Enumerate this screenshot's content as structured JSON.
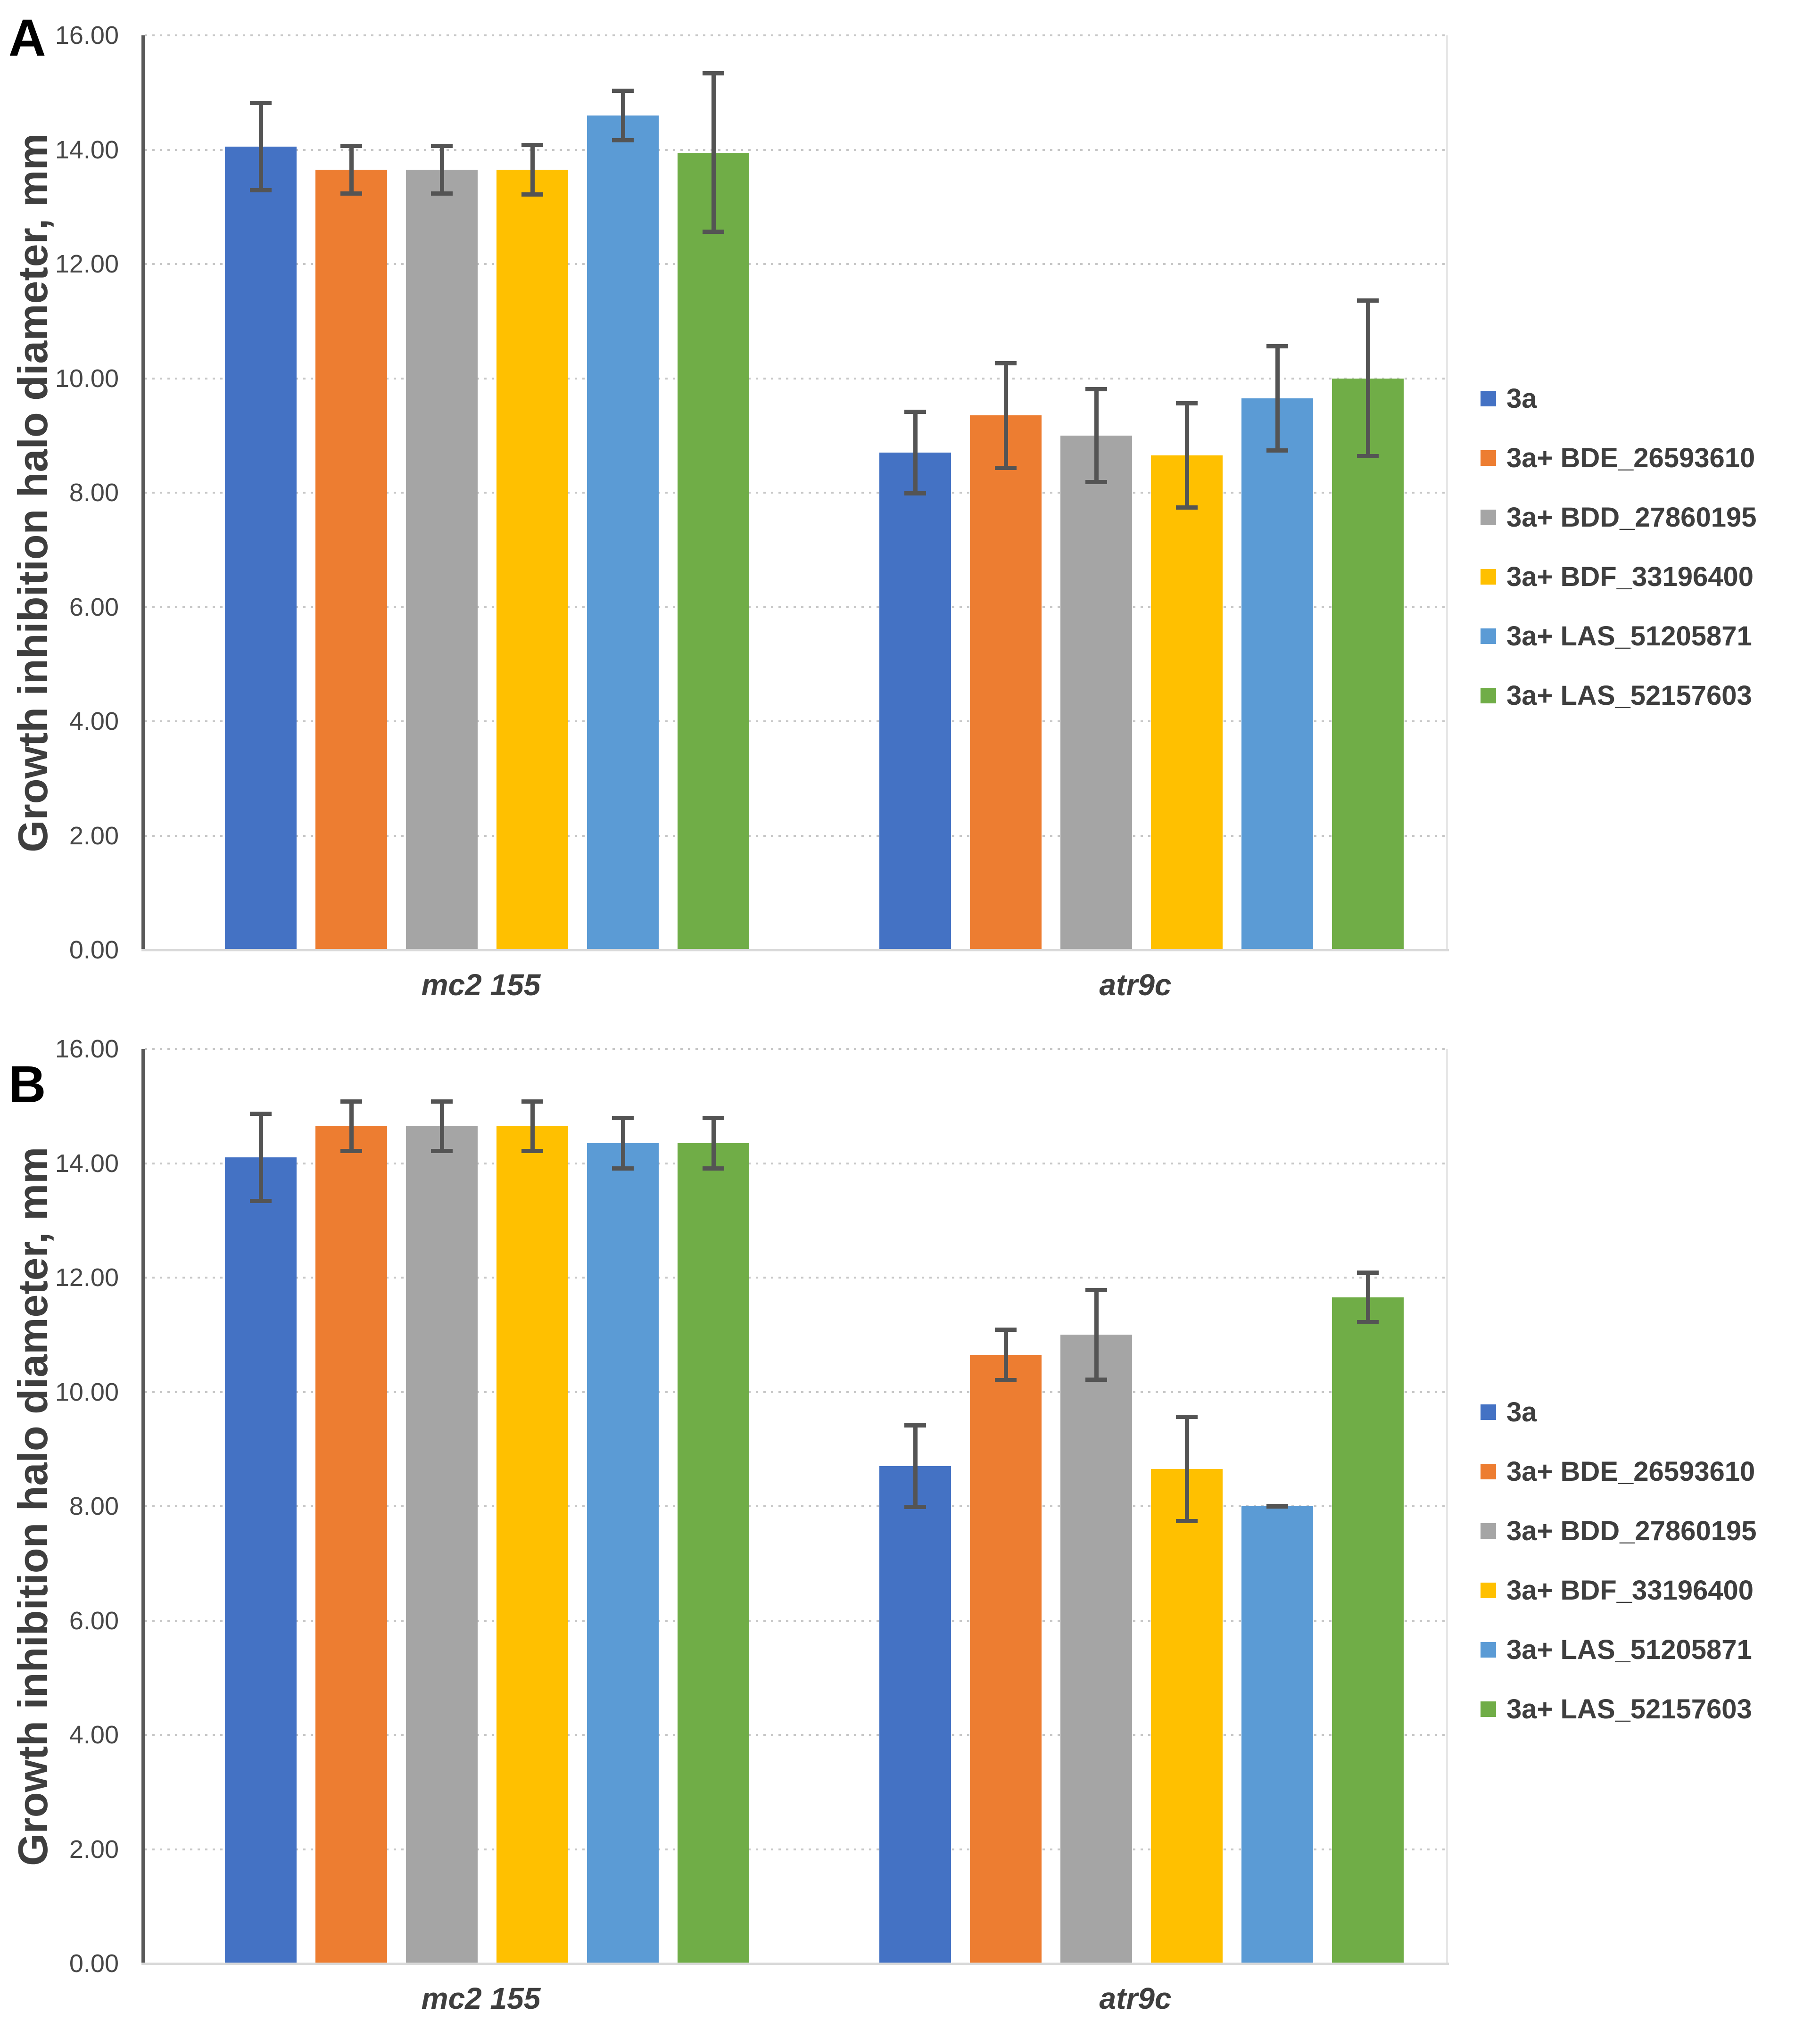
{
  "colors": {
    "series": [
      "#4472C4",
      "#ED7D31",
      "#A5A5A5",
      "#FFC000",
      "#5B9BD5",
      "#70AD47"
    ],
    "error_bar": "#545454",
    "gridline": "#C7C7C7",
    "axis_line_left": "#595959",
    "axis_line_bottom": "#D9D9D9",
    "text": "#3E3E3E"
  },
  "chart_data": [
    {
      "type": "bar",
      "panel_label": "A",
      "ylabel": "Growth inhibition halo diameter, mm",
      "ylim": [
        0,
        16
      ],
      "ytick_step": 2,
      "ytick_labels": [
        "16.00",
        "14.00",
        "12.00",
        "10.00",
        "8.00",
        "6.00",
        "4.00",
        "2.00",
        "0.00"
      ],
      "categories": [
        "mc2 155",
        "atr9c"
      ],
      "grid": true,
      "legend_position": "right",
      "series": [
        {
          "name": "3a",
          "color": "#4472C4",
          "values": [
            14.05,
            8.7
          ],
          "errors": [
            0.8,
            0.75
          ]
        },
        {
          "name": "3a+ BDE_26593610",
          "color": "#ED7D31",
          "values": [
            13.65,
            9.35
          ],
          "errors": [
            0.45,
            0.95
          ]
        },
        {
          "name": "3a+ BDD_27860195",
          "color": "#A5A5A5",
          "values": [
            13.65,
            9.0
          ],
          "errors": [
            0.45,
            0.85
          ]
        },
        {
          "name": "3a+ BDF_33196400",
          "color": "#FFC000",
          "values": [
            13.65,
            8.65
          ],
          "errors": [
            0.47,
            0.95
          ]
        },
        {
          "name": "3a+ LAS_51205871",
          "color": "#5B9BD5",
          "values": [
            14.6,
            9.65
          ],
          "errors": [
            0.47,
            0.95
          ]
        },
        {
          "name": "3a+ LAS_52157603",
          "color": "#70AD47",
          "values": [
            13.95,
            10.0
          ],
          "errors": [
            1.42,
            1.4
          ]
        }
      ]
    },
    {
      "type": "bar",
      "panel_label": "B",
      "ylabel": "Growth inhibition halo diameter, mm",
      "ylim": [
        0,
        16
      ],
      "ytick_step": 2,
      "ytick_labels": [
        "16.00",
        "14.00",
        "12.00",
        "10.00",
        "8.00",
        "6.00",
        "4.00",
        "2.00",
        "0.00"
      ],
      "categories": [
        "mc2 155",
        "atr9c"
      ],
      "grid": true,
      "legend_position": "right",
      "series": [
        {
          "name": "3a",
          "color": "#4472C4",
          "values": [
            14.1,
            8.7
          ],
          "errors": [
            0.8,
            0.75
          ]
        },
        {
          "name": "3a+ BDE_26593610",
          "color": "#ED7D31",
          "values": [
            14.65,
            10.65
          ],
          "errors": [
            0.47,
            0.48
          ]
        },
        {
          "name": "3a+ BDD_27860195",
          "color": "#A5A5A5",
          "values": [
            14.65,
            11.0
          ],
          "errors": [
            0.47,
            0.82
          ]
        },
        {
          "name": "3a+ BDF_33196400",
          "color": "#FFC000",
          "values": [
            14.65,
            8.65
          ],
          "errors": [
            0.47,
            0.95
          ]
        },
        {
          "name": "3a+ LAS_51205871",
          "color": "#5B9BD5",
          "values": [
            14.35,
            8.0
          ],
          "errors": [
            0.48,
            0.04
          ]
        },
        {
          "name": "3a+ LAS_52157603",
          "color": "#70AD47",
          "values": [
            14.35,
            11.65
          ],
          "errors": [
            0.48,
            0.47
          ]
        }
      ]
    }
  ]
}
